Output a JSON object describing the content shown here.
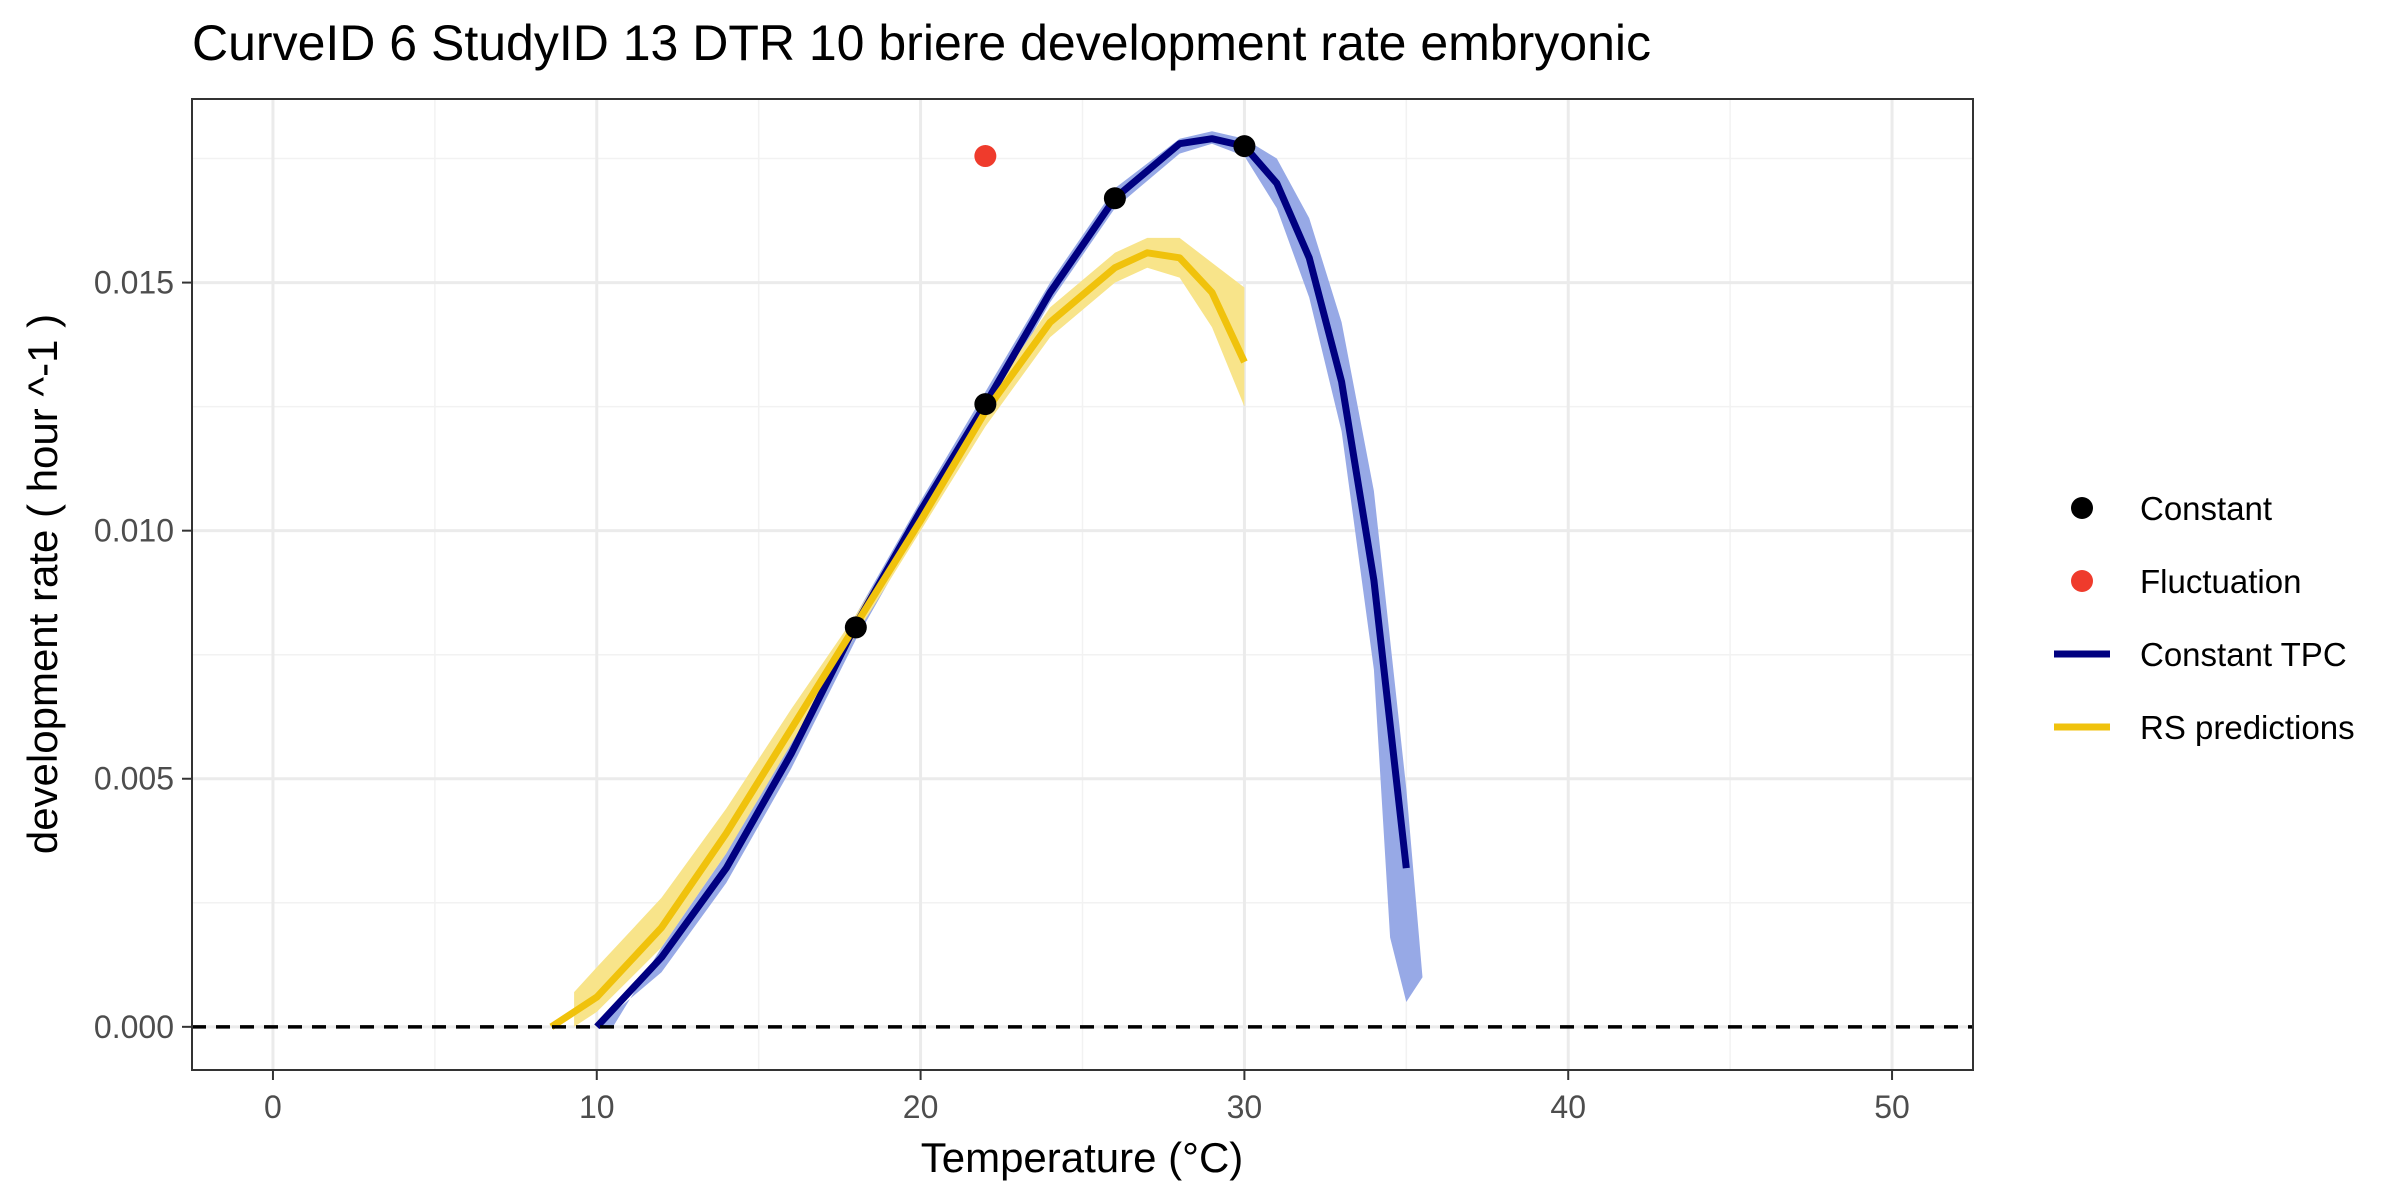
{
  "chart_data": {
    "type": "line",
    "title": "CurveID 6 StudyID 13 DTR 10 briere development rate embryonic",
    "xlabel": "Temperature (°C)",
    "ylabel": "development rate ( hour ^-1 )",
    "xlim": [
      -2.5,
      52.5
    ],
    "ylim": [
      -0.00087,
      0.0187
    ],
    "x_ticks": [
      0,
      10,
      20,
      30,
      40,
      50
    ],
    "x_tick_labels": [
      "0",
      "10",
      "20",
      "30",
      "40",
      "50"
    ],
    "y_ticks": [
      0.0,
      0.005,
      0.01,
      0.015
    ],
    "y_tick_labels": [
      "0.000",
      "0.005",
      "0.010",
      "0.015"
    ],
    "grid": true,
    "legend_position": "right",
    "reference_line": {
      "y": 0,
      "style": "dashed",
      "color": "#000000"
    },
    "legend": [
      {
        "label": "Constant",
        "kind": "point",
        "color": "#000000"
      },
      {
        "label": "Fluctuation",
        "kind": "point",
        "color": "#ef3b2c"
      },
      {
        "label": "Constant TPC",
        "kind": "line",
        "color": "#000080"
      },
      {
        "label": "RS predictions",
        "kind": "line",
        "color": "#f0c20c"
      }
    ],
    "series": [
      {
        "name": "Constant",
        "kind": "points",
        "color": "#000000",
        "points": [
          [
            18,
            0.00805
          ],
          [
            22,
            0.01255
          ],
          [
            26,
            0.0167
          ],
          [
            30,
            0.01775
          ]
        ]
      },
      {
        "name": "Fluctuation",
        "kind": "points",
        "color": "#ef3b2c",
        "points": [
          [
            22,
            0.01755
          ]
        ]
      },
      {
        "name": "Constant TPC",
        "kind": "line",
        "color": "#000080",
        "ribbon_color": "#97a9e6",
        "points": [
          [
            10,
            0.0
          ],
          [
            12,
            0.0014
          ],
          [
            14,
            0.0032
          ],
          [
            16,
            0.0055
          ],
          [
            18,
            0.0081
          ],
          [
            20,
            0.0104
          ],
          [
            22,
            0.01255
          ],
          [
            24,
            0.0148
          ],
          [
            26,
            0.0167
          ],
          [
            28,
            0.0178
          ],
          [
            29,
            0.0179
          ],
          [
            30,
            0.01775
          ],
          [
            31,
            0.017
          ],
          [
            32,
            0.0155
          ],
          [
            33,
            0.013
          ],
          [
            34,
            0.009
          ],
          [
            35,
            0.0032
          ]
        ],
        "upper": [
          [
            10.5,
            0.0
          ],
          [
            12,
            0.0016
          ],
          [
            14,
            0.0035
          ],
          [
            16,
            0.0058
          ],
          [
            18,
            0.0083
          ],
          [
            20,
            0.0106
          ],
          [
            22,
            0.0128
          ],
          [
            24,
            0.015
          ],
          [
            26,
            0.0169
          ],
          [
            28,
            0.0179
          ],
          [
            29,
            0.01805
          ],
          [
            30,
            0.0179
          ],
          [
            31,
            0.0175
          ],
          [
            32,
            0.0163
          ],
          [
            33,
            0.0142
          ],
          [
            34,
            0.0108
          ],
          [
            35,
            0.0048
          ],
          [
            35.5,
            0.001
          ]
        ],
        "lower": [
          [
            35,
            0.0005
          ],
          [
            34.5,
            0.0018
          ],
          [
            34,
            0.0072
          ],
          [
            33,
            0.012
          ],
          [
            32,
            0.0147
          ],
          [
            31,
            0.0165
          ],
          [
            30,
            0.01755
          ],
          [
            29,
            0.0178
          ],
          [
            28,
            0.0176
          ],
          [
            26,
            0.0165
          ],
          [
            24,
            0.0146
          ],
          [
            22,
            0.0123
          ],
          [
            20,
            0.0101
          ],
          [
            18,
            0.0078
          ],
          [
            16,
            0.0052
          ],
          [
            14,
            0.0029
          ],
          [
            12,
            0.0011
          ],
          [
            10,
            0.0
          ]
        ]
      },
      {
        "name": "RS predictions",
        "kind": "line",
        "color": "#f0c20c",
        "ribbon_color": "#f8e48a",
        "points": [
          [
            8.6,
            0.0
          ],
          [
            10,
            0.0006
          ],
          [
            12,
            0.002
          ],
          [
            14,
            0.0039
          ],
          [
            16,
            0.006
          ],
          [
            18,
            0.0081
          ],
          [
            20,
            0.0102
          ],
          [
            22,
            0.0124
          ],
          [
            24,
            0.0142
          ],
          [
            26,
            0.0153
          ],
          [
            27,
            0.0156
          ],
          [
            28,
            0.0155
          ],
          [
            29,
            0.0148
          ],
          [
            30,
            0.0134
          ]
        ],
        "upper": [
          [
            9.3,
            0.0007
          ],
          [
            10,
            0.0012
          ],
          [
            12,
            0.0026
          ],
          [
            14,
            0.0044
          ],
          [
            16,
            0.0064
          ],
          [
            18,
            0.0083
          ],
          [
            20,
            0.0104
          ],
          [
            22,
            0.0126
          ],
          [
            24,
            0.0145
          ],
          [
            26,
            0.0156
          ],
          [
            27,
            0.0159
          ],
          [
            28,
            0.0159
          ],
          [
            29,
            0.0154
          ],
          [
            30,
            0.0149
          ]
        ],
        "lower": [
          [
            30,
            0.0125
          ],
          [
            29,
            0.0141
          ],
          [
            28,
            0.0151
          ],
          [
            27,
            0.0153
          ],
          [
            26,
            0.015
          ],
          [
            24,
            0.0139
          ],
          [
            22,
            0.0121
          ],
          [
            20,
            0.01
          ],
          [
            18,
            0.0079
          ],
          [
            16,
            0.0057
          ],
          [
            14,
            0.0035
          ],
          [
            12,
            0.0016
          ],
          [
            10,
            0.0003
          ],
          [
            9.3,
            0.0
          ]
        ]
      }
    ]
  }
}
